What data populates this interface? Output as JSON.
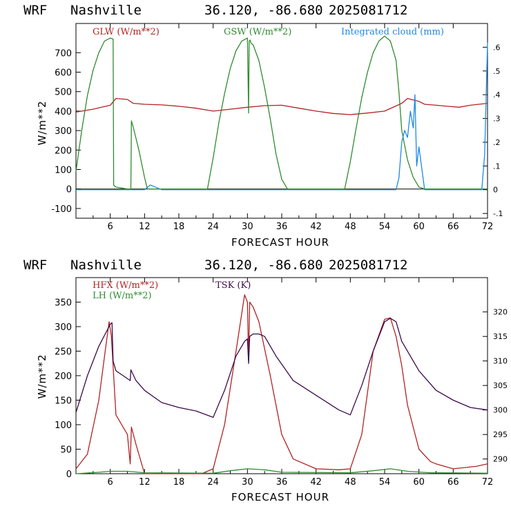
{
  "header": {
    "model": "WRF",
    "location": "Nashville",
    "coords": "36.120, -86.680",
    "init": "2025081712"
  },
  "colors": {
    "red": "#b22222",
    "green": "#2e8b2e",
    "blue": "#1e88e5",
    "purple": "#3a0a4a"
  },
  "chart_data": [
    {
      "type": "line",
      "xlabel": "FORECAST HOUR",
      "ylabel": "W/m**2",
      "xlim": [
        0,
        72
      ],
      "xticks": [
        6,
        12,
        18,
        24,
        30,
        36,
        42,
        48,
        54,
        60,
        66,
        72
      ],
      "ylim": [
        -150,
        850
      ],
      "yticks": [
        -100,
        0,
        100,
        200,
        300,
        400,
        500,
        600,
        700
      ],
      "y2lim": [
        -0.12,
        0.7
      ],
      "y2ticks": [
        -0.1,
        0,
        0.1,
        0.2,
        0.3,
        0.4,
        0.5,
        0.6
      ],
      "y2ticklabels": [
        "-.1",
        "0",
        ".1",
        ".2",
        ".3",
        ".4",
        ".5",
        ".6"
      ],
      "series": [
        {
          "name": "GLW (W/m**2)",
          "color": "#b22222",
          "axis": "left",
          "x": [
            0,
            3,
            6,
            7,
            9,
            10,
            12,
            15,
            18,
            21,
            24,
            27,
            30,
            33,
            36,
            39,
            42,
            45,
            48,
            51,
            54,
            57,
            58,
            60,
            61,
            63,
            65,
            67,
            69,
            72
          ],
          "y": [
            395,
            410,
            430,
            465,
            460,
            440,
            435,
            432,
            425,
            415,
            400,
            410,
            420,
            428,
            430,
            415,
            400,
            388,
            382,
            390,
            400,
            440,
            465,
            450,
            435,
            430,
            425,
            420,
            430,
            440
          ]
        },
        {
          "name": "GSW (W/m**2)",
          "color": "#2e8b2e",
          "axis": "left",
          "x": [
            0,
            1,
            2,
            3,
            4,
            5,
            6,
            6.5,
            6.6,
            7,
            8,
            9,
            9.6,
            9.7,
            10,
            11,
            12,
            12.5,
            23,
            24,
            25,
            26,
            27,
            28,
            29,
            30,
            30.2,
            30.3,
            30.5,
            30.6,
            31,
            32,
            33,
            34,
            35,
            36,
            37,
            47,
            48,
            49,
            50,
            51,
            52,
            53,
            54,
            55,
            56,
            56.5,
            57,
            58,
            59,
            60,
            61,
            72
          ],
          "y": [
            90,
            300,
            480,
            610,
            700,
            760,
            775,
            770,
            20,
            10,
            5,
            0,
            0,
            350,
            320,
            200,
            60,
            0,
            0,
            160,
            340,
            490,
            620,
            710,
            760,
            775,
            390,
            760,
            765,
            750,
            740,
            660,
            520,
            360,
            180,
            50,
            0,
            0,
            140,
            310,
            470,
            600,
            700,
            760,
            785,
            760,
            660,
            500,
            300,
            150,
            60,
            10,
            0,
            0
          ]
        },
        {
          "name": "Integrated cloud (mm)",
          "color": "#1e88e5",
          "axis": "right",
          "x": [
            0,
            12,
            13,
            14,
            15,
            56,
            56.5,
            57,
            57.5,
            58,
            58.5,
            59,
            59.3,
            59.6,
            60,
            61,
            71,
            71.5,
            72
          ],
          "y": [
            0,
            0,
            0.02,
            0.01,
            0,
            0,
            0.05,
            0.2,
            0.25,
            0.22,
            0.33,
            0.26,
            0.4,
            0.1,
            0.18,
            0,
            0,
            0.15,
            0.62
          ]
        }
      ]
    },
    {
      "type": "line",
      "xlabel": "FORECAST HOUR",
      "ylabel": "W/m**2",
      "xlim": [
        0,
        72
      ],
      "xticks": [
        6,
        12,
        18,
        24,
        30,
        36,
        42,
        48,
        54,
        60,
        66,
        72
      ],
      "ylim": [
        0,
        400
      ],
      "yticks": [
        0,
        50,
        100,
        150,
        200,
        250,
        300,
        350
      ],
      "y2lim": [
        287,
        327
      ],
      "y2ticks": [
        290,
        295,
        300,
        305,
        310,
        315,
        320
      ],
      "series": [
        {
          "name": "HFX (W/m**2)",
          "color": "#b22222",
          "axis": "left",
          "x": [
            0,
            2,
            4,
            5,
            5.8,
            6.2,
            7,
            9,
            9.5,
            9.7,
            10.5,
            12,
            18,
            22,
            24,
            26,
            28,
            29.5,
            30,
            30.2,
            30.4,
            31,
            32,
            34,
            36,
            38,
            42,
            46,
            48,
            50,
            52,
            54,
            55,
            56,
            57,
            58,
            60,
            62,
            63,
            66,
            70,
            72
          ],
          "y": [
            10,
            40,
            150,
            240,
            310,
            280,
            120,
            80,
            20,
            95,
            60,
            0,
            0,
            0,
            10,
            100,
            250,
            365,
            350,
            230,
            350,
            340,
            310,
            200,
            80,
            30,
            10,
            8,
            10,
            80,
            250,
            315,
            318,
            280,
            220,
            140,
            50,
            25,
            20,
            10,
            15,
            20
          ]
        },
        {
          "name": "LH  (W/m**2)",
          "color": "#2e8b2e",
          "axis": "left",
          "x": [
            0,
            4,
            6,
            9,
            12,
            24,
            27,
            30,
            33,
            36,
            48,
            52,
            55,
            58,
            62,
            72
          ],
          "y": [
            0,
            3,
            5,
            5,
            2,
            1,
            6,
            10,
            8,
            3,
            2,
            6,
            10,
            5,
            2,
            1
          ]
        },
        {
          "name": "TSK (K)",
          "color": "#3a0a4a",
          "axis": "right",
          "x": [
            0,
            2,
            4,
            6,
            6.3,
            6.5,
            7,
            9.5,
            9.6,
            10.5,
            12,
            15,
            18,
            21,
            24,
            26,
            28,
            29.5,
            30,
            30.2,
            30.4,
            31,
            32,
            33,
            35,
            38,
            42,
            46,
            48,
            50,
            52,
            54,
            55,
            56,
            57,
            60,
            63,
            66,
            69,
            72
          ],
          "y": [
            299.5,
            307,
            313,
            317.5,
            317.8,
            310,
            308,
            306,
            308.2,
            306,
            304,
            301.5,
            300.5,
            299.8,
            298.5,
            304,
            311,
            314,
            314.5,
            309.5,
            315,
            315.5,
            315.5,
            315,
            311,
            306,
            303,
            300,
            299,
            305,
            312,
            318,
            318.7,
            318,
            314,
            308,
            304,
            302,
            300.5,
            300
          ]
        }
      ]
    }
  ]
}
